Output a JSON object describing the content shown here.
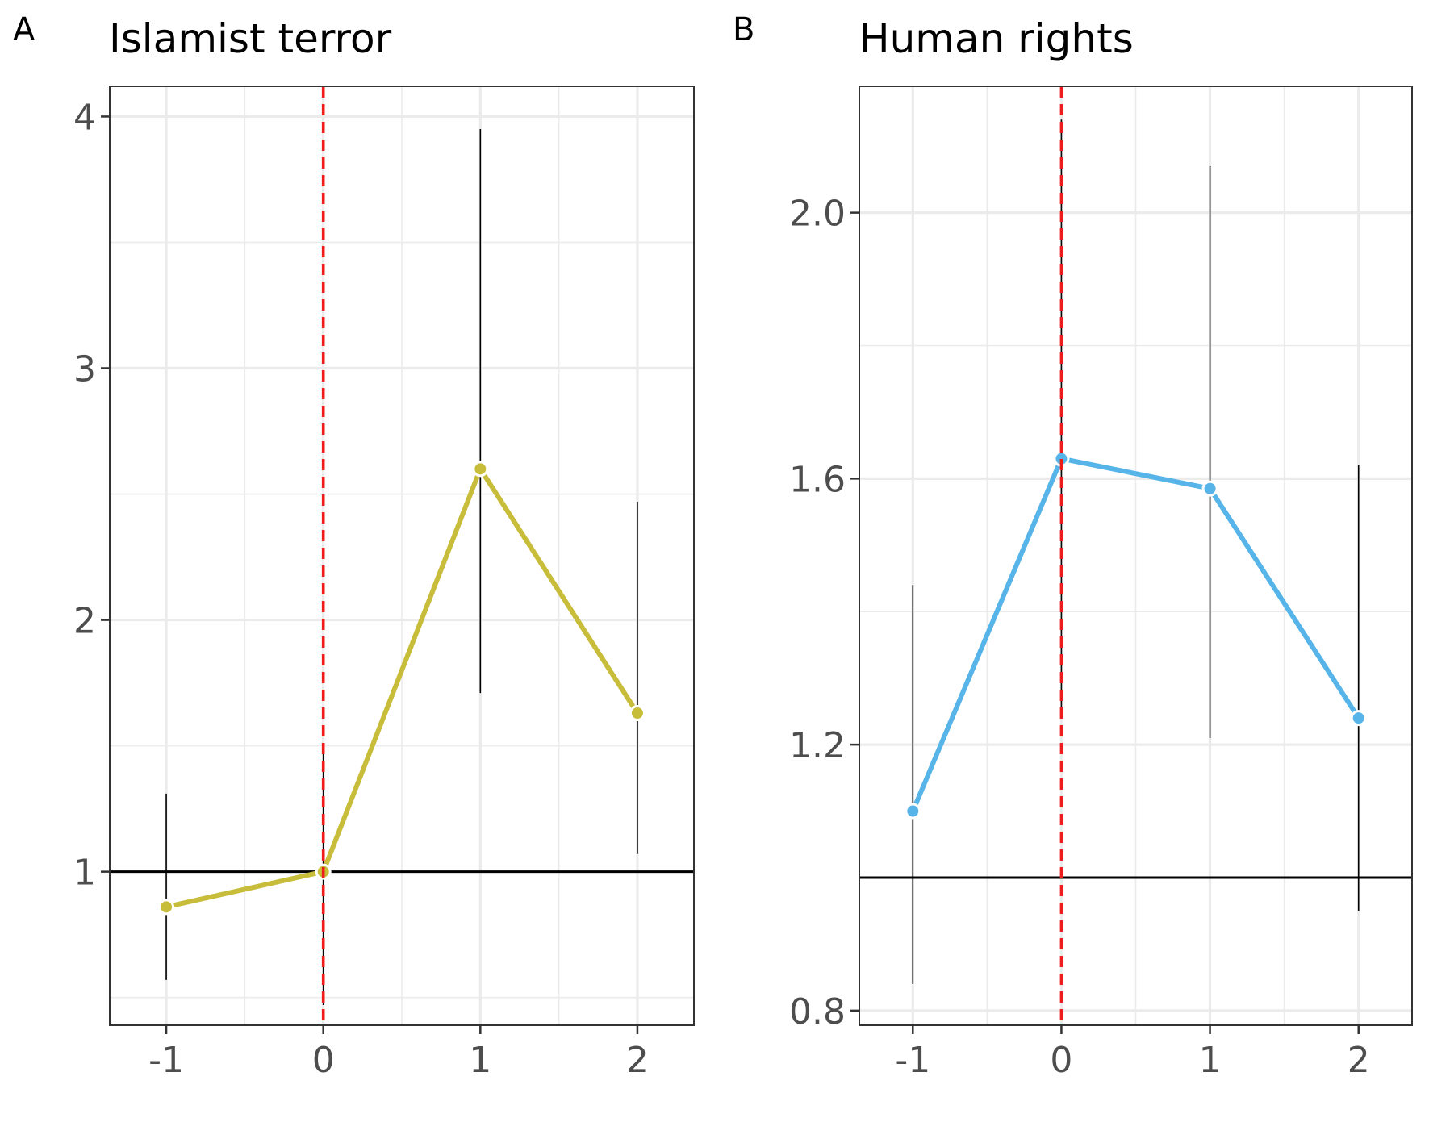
{
  "chart_data": [
    {
      "type": "line",
      "tag": "A",
      "title": "Islamist terror",
      "xlabel": "",
      "ylabel": "",
      "x": [
        -1,
        0,
        1,
        2
      ],
      "x_tick_labels": [
        "-1",
        "0",
        "1",
        "2"
      ],
      "y_ticks": [
        1,
        2,
        3,
        4
      ],
      "y_tick_labels": [
        "1",
        "2",
        "3",
        "4"
      ],
      "xlim": [
        -1.36,
        2.36
      ],
      "ylim": [
        0.39,
        4.12
      ],
      "reference_line_y": 1,
      "event_line_x": 0,
      "grid": true,
      "series": [
        {
          "values": [
            0.86,
            1.0,
            2.6,
            1.63
          ],
          "ci_low": [
            0.57,
            0.47,
            1.71,
            1.07
          ],
          "ci_high": [
            1.31,
            1.48,
            3.95,
            2.47
          ],
          "color": "#c8bd3a"
        }
      ]
    },
    {
      "type": "line",
      "tag": "B",
      "title": "Human rights",
      "xlabel": "",
      "ylabel": "",
      "x": [
        -1,
        0,
        1,
        2
      ],
      "x_tick_labels": [
        "-1",
        "0",
        "1",
        "2"
      ],
      "y_ticks": [
        0.8,
        1.2,
        1.6,
        2.0
      ],
      "y_tick_labels": [
        "0.8",
        "1.2",
        "1.6",
        "2.0"
      ],
      "xlim": [
        -1.36,
        2.36
      ],
      "ylim": [
        0.778,
        2.19
      ],
      "reference_line_y": 1,
      "event_line_x": 0,
      "grid": true,
      "series": [
        {
          "values": [
            1.1,
            1.63,
            1.585,
            1.24
          ],
          "ci_low": [
            0.84,
            1.25,
            1.21,
            0.95
          ],
          "ci_high": [
            1.44,
            2.14,
            2.07,
            1.62
          ],
          "color": "#56b4e9"
        }
      ]
    }
  ],
  "style": {
    "event_line_color": "#ee1c1c",
    "reference_line_color": "#000000",
    "errorbar_color": "#000000",
    "panel_border_color": "#333333",
    "grid_color": "#ebebeb"
  }
}
